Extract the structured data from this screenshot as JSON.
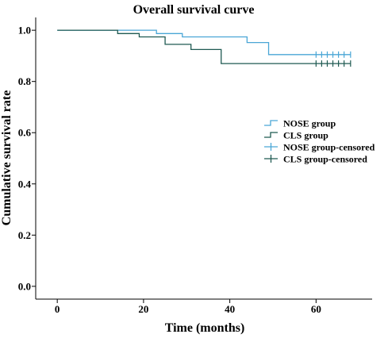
{
  "colors": {
    "nose": "#4aa6d6",
    "cls": "#1f5a52",
    "axis": "#000000",
    "background": "#ffffff"
  },
  "chart_data": {
    "type": "line",
    "title": "Overall survival curve",
    "xlabel": "Time (months)",
    "ylabel": "Cumulative survival rate",
    "xlim": [
      -5,
      73
    ],
    "ylim": [
      -0.05,
      1.05
    ],
    "x_ticks": [
      0,
      20,
      40,
      60
    ],
    "x_tick_labels": [
      "0",
      "20",
      "40",
      "60"
    ],
    "y_ticks": [
      0.0,
      0.2,
      0.4,
      0.6,
      0.8,
      1.0
    ],
    "y_tick_labels": [
      "0.0",
      "0.2",
      "0.4",
      "0.6",
      "0.8",
      "1.0"
    ],
    "grid": false,
    "legend_position": "right",
    "legend": [
      {
        "label": "NOSE group",
        "series": "NOSE group",
        "kind": "line"
      },
      {
        "label": "CLS group",
        "series": "CLS group",
        "kind": "line"
      },
      {
        "label": "NOSE group-censored",
        "series": "NOSE group",
        "kind": "censor"
      },
      {
        "label": "CLS group-censored",
        "series": "CLS group",
        "kind": "censor"
      }
    ],
    "series": [
      {
        "name": "NOSE group",
        "color_key": "nose",
        "steps": [
          [
            0,
            1.0
          ],
          [
            23,
            0.987
          ],
          [
            29,
            0.974
          ],
          [
            44,
            0.952
          ],
          [
            49,
            0.905
          ],
          [
            68,
            0.905
          ]
        ],
        "censored": [
          [
            60,
            0.905
          ],
          [
            61.3,
            0.905
          ],
          [
            62.6,
            0.905
          ],
          [
            63.9,
            0.905
          ],
          [
            65.2,
            0.905
          ],
          [
            66.5,
            0.905
          ],
          [
            68,
            0.905
          ]
        ]
      },
      {
        "name": "CLS group",
        "color_key": "cls",
        "steps": [
          [
            0,
            1.0
          ],
          [
            14,
            0.987
          ],
          [
            19,
            0.974
          ],
          [
            25,
            0.945
          ],
          [
            31,
            0.925
          ],
          [
            38,
            0.87
          ],
          [
            68,
            0.87
          ]
        ],
        "censored": [
          [
            60,
            0.87
          ],
          [
            61.3,
            0.87
          ],
          [
            62.6,
            0.87
          ],
          [
            63.9,
            0.87
          ],
          [
            65.2,
            0.87
          ],
          [
            66.5,
            0.87
          ],
          [
            68,
            0.87
          ]
        ]
      }
    ]
  }
}
